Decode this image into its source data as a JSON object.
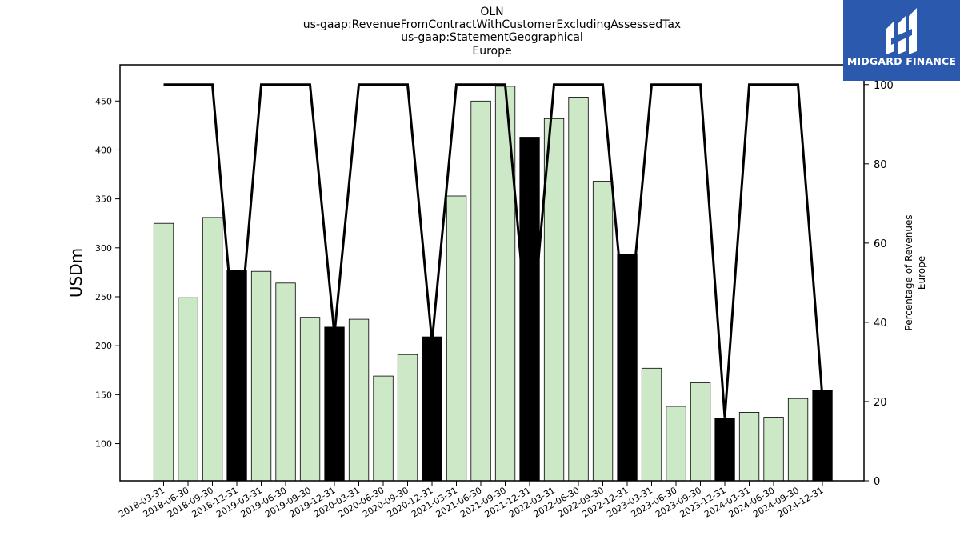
{
  "brand": {
    "name": "MIDGARD FINANCE",
    "bg_color": "#2b59ad"
  },
  "chart_data": {
    "type": "bar",
    "title_lines": [
      "OLN",
      "us-gaap:RevenueFromContractWithCustomerExcludingAssessedTax",
      "us-gaap:StatementGeographical",
      "Europe"
    ],
    "ylabel": "USDm",
    "y2label_lines": [
      "Percentage of Revenues",
      "Europe"
    ],
    "ylim": [
      62,
      487
    ],
    "y2lim": [
      0,
      105
    ],
    "yticks": [
      100,
      150,
      200,
      250,
      300,
      350,
      400,
      450
    ],
    "y2ticks": [
      0,
      20,
      40,
      60,
      80,
      100
    ],
    "categories": [
      "2018-03-31",
      "2018-06-30",
      "2018-09-30",
      "2018-12-31",
      "2019-03-31",
      "2019-06-30",
      "2019-09-30",
      "2019-12-31",
      "2020-03-31",
      "2020-06-30",
      "2020-09-30",
      "2020-12-31",
      "2021-03-31",
      "2021-06-30",
      "2021-09-30",
      "2021-12-31",
      "2022-03-31",
      "2022-06-30",
      "2022-09-30",
      "2022-12-31",
      "2023-03-31",
      "2023-06-30",
      "2023-09-30",
      "2023-12-31",
      "2024-03-31",
      "2024-06-30",
      "2024-09-30",
      "2024-12-31"
    ],
    "series": [
      {
        "values": [
          325,
          249,
          331,
          277,
          276,
          264,
          229,
          219,
          227,
          169,
          191,
          209,
          353,
          450,
          465,
          413,
          432,
          454,
          368,
          293,
          177,
          138,
          162,
          126,
          132,
          127,
          146,
          154
        ]
      },
      {
        "values": [
          100,
          100,
          100,
          29,
          100,
          100,
          100,
          37,
          100,
          100,
          100,
          35,
          100,
          100,
          100,
          31,
          100,
          100,
          100,
          34,
          100,
          100,
          100,
          16,
          100,
          100,
          100,
          21
        ]
      }
    ],
    "colors": {
      "quarter_bar": "#cde8c7",
      "annual_bar": "#000000",
      "bar_edge": "#000000",
      "line": "#000000"
    },
    "grid": false
  }
}
